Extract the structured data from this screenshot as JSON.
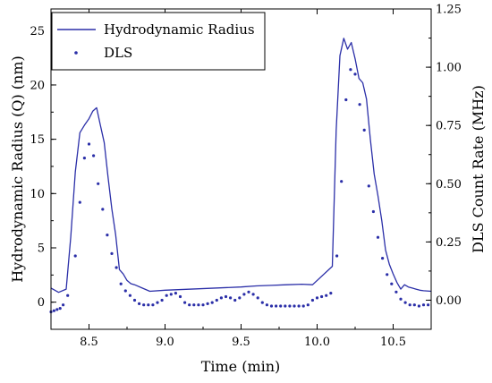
{
  "chart_data": {
    "type": "line",
    "xlabel": "Time (min)",
    "ylabel_left": "Hydrodynamic Radius (Q) (nm)",
    "ylabel_right": "DLS Count Rate (MHz)",
    "xlim": [
      8.25,
      10.75
    ],
    "ylim_left": [
      -2.5,
      27
    ],
    "ylim_right": [
      -0.125,
      1.25
    ],
    "x_ticks": [
      "8.5",
      "9.0",
      "9.5",
      "10.0",
      "10.5"
    ],
    "y_left_ticks": [
      "0",
      "5",
      "10",
      "15",
      "20",
      "25"
    ],
    "y_right_ticks": [
      "0.00",
      "0.25",
      "0.50",
      "0.75",
      "1.00",
      "1.25"
    ],
    "legend": {
      "placement": "top-left",
      "entries": [
        "Hydrodynamic Radius",
        "DLS"
      ]
    },
    "series": [
      {
        "name": "Hydrodynamic Radius",
        "style": "line",
        "color": "#2b2fa8",
        "axis": "left",
        "x": [
          8.25,
          8.3,
          8.35,
          8.38,
          8.41,
          8.44,
          8.47,
          8.5,
          8.525,
          8.55,
          8.575,
          8.6,
          8.625,
          8.65,
          8.675,
          8.7,
          8.725,
          8.75,
          8.775,
          8.8,
          8.85,
          8.9,
          9.0,
          9.5,
          9.6,
          9.7,
          9.8,
          9.9,
          9.97,
          10.1,
          10.125,
          10.15,
          10.175,
          10.2,
          10.225,
          10.25,
          10.275,
          10.3,
          10.325,
          10.35,
          10.375,
          10.4,
          10.425,
          10.45,
          10.475,
          10.5,
          10.525,
          10.55,
          10.575,
          10.6,
          10.625,
          10.65,
          10.675,
          10.7,
          10.75
        ],
        "y": [
          1.3,
          0.9,
          1.2,
          6.0,
          12.0,
          15.6,
          16.3,
          16.9,
          17.6,
          17.9,
          16.3,
          14.7,
          11.5,
          8.6,
          6.2,
          3.0,
          2.6,
          2.0,
          1.7,
          1.6,
          1.3,
          1.0,
          1.1,
          1.4,
          1.5,
          1.55,
          1.6,
          1.65,
          1.6,
          3.3,
          15.8,
          22.7,
          24.3,
          23.3,
          23.9,
          22.4,
          20.6,
          20.2,
          18.7,
          15.0,
          11.8,
          9.8,
          7.5,
          4.8,
          3.5,
          2.6,
          1.8,
          1.2,
          1.6,
          1.4,
          1.3,
          1.2,
          1.1,
          1.05,
          1.0
        ]
      },
      {
        "name": "DLS",
        "style": "dots",
        "color": "#2b2fa8",
        "axis": "right",
        "x": [
          8.25,
          8.27,
          8.29,
          8.31,
          8.33,
          8.36,
          8.41,
          8.44,
          8.47,
          8.5,
          8.53,
          8.56,
          8.59,
          8.62,
          8.65,
          8.68,
          8.71,
          8.74,
          8.77,
          8.8,
          8.83,
          8.86,
          8.89,
          8.92,
          8.95,
          8.98,
          9.01,
          9.04,
          9.07,
          9.1,
          9.13,
          9.16,
          9.19,
          9.22,
          9.25,
          9.28,
          9.31,
          9.34,
          9.37,
          9.4,
          9.43,
          9.46,
          9.49,
          9.52,
          9.55,
          9.58,
          9.61,
          9.64,
          9.67,
          9.7,
          9.73,
          9.76,
          9.79,
          9.82,
          9.85,
          9.88,
          9.91,
          9.94,
          9.97,
          10.0,
          10.03,
          10.06,
          10.09,
          10.13,
          10.16,
          10.19,
          10.22,
          10.25,
          10.28,
          10.31,
          10.34,
          10.37,
          10.4,
          10.43,
          10.46,
          10.49,
          10.52,
          10.55,
          10.58,
          10.61,
          10.64,
          10.67,
          10.7,
          10.73
        ],
        "y": [
          -0.05,
          -0.045,
          -0.04,
          -0.035,
          -0.02,
          0.02,
          0.19,
          0.42,
          0.61,
          0.67,
          0.62,
          0.5,
          0.39,
          0.28,
          0.2,
          0.14,
          0.07,
          0.04,
          0.02,
          0.0,
          -0.015,
          -0.02,
          -0.02,
          -0.02,
          -0.01,
          0.0,
          0.02,
          0.025,
          0.03,
          0.015,
          -0.01,
          -0.02,
          -0.02,
          -0.02,
          -0.02,
          -0.015,
          -0.01,
          0.0,
          0.01,
          0.015,
          0.01,
          0.0,
          0.01,
          0.025,
          0.035,
          0.025,
          0.01,
          -0.01,
          -0.02,
          -0.025,
          -0.025,
          -0.025,
          -0.025,
          -0.025,
          -0.025,
          -0.025,
          -0.025,
          -0.02,
          0.0,
          0.01,
          0.015,
          0.02,
          0.03,
          0.19,
          0.51,
          0.86,
          0.99,
          0.97,
          0.84,
          0.73,
          0.49,
          0.38,
          0.27,
          0.18,
          0.11,
          0.07,
          0.035,
          0.005,
          -0.01,
          -0.02,
          -0.02,
          -0.025,
          -0.02,
          -0.02
        ]
      }
    ]
  }
}
